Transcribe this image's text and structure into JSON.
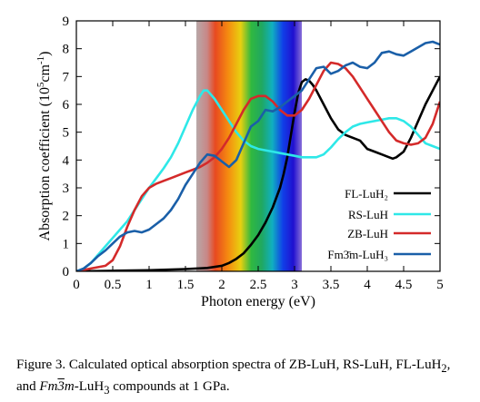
{
  "chart_data": {
    "type": "line",
    "xlabel": "Photon energy (eV)",
    "ylabel": "Absorption coefficient (10^5 cm^-1)",
    "xlim": [
      0,
      5
    ],
    "ylim": [
      0,
      9
    ],
    "xticks": [
      0,
      0.5,
      1,
      1.5,
      2,
      2.5,
      3,
      3.5,
      4,
      4.5,
      5
    ],
    "xtick_labels": [
      "0",
      "0.5",
      "1",
      "1.5",
      "2",
      "2.5",
      "3",
      "3.5",
      "4",
      "4.5",
      "5"
    ],
    "yticks": [
      0,
      1,
      2,
      3,
      4,
      5,
      6,
      7,
      8,
      9
    ],
    "ytick_labels": [
      "0",
      "1",
      "2",
      "3",
      "4",
      "5",
      "6",
      "7",
      "8",
      "9"
    ],
    "visible_band": [
      1.65,
      3.1
    ],
    "grid": false,
    "legend_position": "center-right",
    "series": [
      {
        "name": "FL-LuH₂",
        "color": "#000000",
        "x": [
          0,
          0.5,
          1.0,
          1.5,
          1.8,
          2.0,
          2.1,
          2.2,
          2.3,
          2.4,
          2.5,
          2.6,
          2.7,
          2.8,
          2.85,
          2.9,
          2.95,
          3.0,
          3.05,
          3.1,
          3.15,
          3.2,
          3.25,
          3.3,
          3.4,
          3.5,
          3.6,
          3.7,
          3.8,
          3.9,
          4.0,
          4.1,
          4.2,
          4.3,
          4.35,
          4.4,
          4.5,
          4.6,
          4.7,
          4.8,
          4.9,
          5.0
        ],
        "y": [
          0,
          0.02,
          0.04,
          0.08,
          0.12,
          0.2,
          0.3,
          0.45,
          0.65,
          0.95,
          1.3,
          1.75,
          2.3,
          3.0,
          3.5,
          4.1,
          4.9,
          5.7,
          6.4,
          6.8,
          6.9,
          6.85,
          6.7,
          6.5,
          6.0,
          5.5,
          5.1,
          4.9,
          4.8,
          4.7,
          4.4,
          4.3,
          4.2,
          4.1,
          4.05,
          4.1,
          4.3,
          4.8,
          5.4,
          6.0,
          6.5,
          7.0
        ]
      },
      {
        "name": "RS-LuH",
        "color": "#2ee8e8",
        "x": [
          0,
          0.1,
          0.2,
          0.3,
          0.4,
          0.5,
          0.6,
          0.7,
          0.8,
          0.9,
          1.0,
          1.1,
          1.2,
          1.3,
          1.4,
          1.5,
          1.6,
          1.7,
          1.75,
          1.8,
          1.9,
          2.0,
          2.1,
          2.2,
          2.3,
          2.4,
          2.5,
          2.6,
          2.7,
          2.8,
          2.9,
          3.0,
          3.1,
          3.2,
          3.3,
          3.4,
          3.5,
          3.6,
          3.7,
          3.8,
          3.9,
          4.0,
          4.1,
          4.2,
          4.3,
          4.4,
          4.5,
          4.6,
          4.7,
          4.8,
          4.9,
          5.0
        ],
        "y": [
          0,
          0.1,
          0.3,
          0.6,
          0.9,
          1.2,
          1.5,
          1.8,
          2.2,
          2.6,
          3.0,
          3.35,
          3.7,
          4.1,
          4.6,
          5.2,
          5.8,
          6.3,
          6.5,
          6.5,
          6.2,
          5.8,
          5.4,
          5.0,
          4.7,
          4.5,
          4.4,
          4.35,
          4.3,
          4.25,
          4.2,
          4.15,
          4.1,
          4.1,
          4.1,
          4.2,
          4.45,
          4.75,
          5.0,
          5.2,
          5.3,
          5.35,
          5.4,
          5.45,
          5.5,
          5.5,
          5.4,
          5.2,
          4.9,
          4.6,
          4.5,
          4.4
        ]
      },
      {
        "name": "ZB-LuH",
        "color": "#d42a2a",
        "x": [
          0,
          0.1,
          0.2,
          0.3,
          0.4,
          0.5,
          0.6,
          0.7,
          0.8,
          0.9,
          1.0,
          1.1,
          1.2,
          1.3,
          1.4,
          1.5,
          1.6,
          1.7,
          1.8,
          1.9,
          2.0,
          2.1,
          2.2,
          2.3,
          2.4,
          2.5,
          2.6,
          2.7,
          2.8,
          2.9,
          3.0,
          3.1,
          3.2,
          3.3,
          3.4,
          3.5,
          3.6,
          3.7,
          3.8,
          3.9,
          4.0,
          4.1,
          4.2,
          4.3,
          4.4,
          4.5,
          4.6,
          4.7,
          4.8,
          4.9,
          5.0
        ],
        "y": [
          0,
          0.05,
          0.1,
          0.15,
          0.2,
          0.4,
          0.9,
          1.6,
          2.2,
          2.7,
          3.0,
          3.15,
          3.25,
          3.35,
          3.45,
          3.55,
          3.65,
          3.75,
          3.9,
          4.1,
          4.4,
          4.8,
          5.3,
          5.8,
          6.2,
          6.3,
          6.3,
          6.1,
          5.8,
          5.6,
          5.6,
          5.8,
          6.2,
          6.7,
          7.2,
          7.5,
          7.45,
          7.3,
          7.0,
          6.6,
          6.2,
          5.8,
          5.4,
          5.0,
          4.7,
          4.6,
          4.55,
          4.6,
          4.8,
          5.3,
          6.1
        ]
      },
      {
        "name": "Fm3̄m-LuH₃",
        "color": "#1a5fa8",
        "x": [
          0,
          0.1,
          0.2,
          0.3,
          0.4,
          0.5,
          0.6,
          0.7,
          0.8,
          0.9,
          1.0,
          1.1,
          1.2,
          1.3,
          1.4,
          1.5,
          1.6,
          1.7,
          1.8,
          1.9,
          2.0,
          2.1,
          2.2,
          2.3,
          2.4,
          2.5,
          2.6,
          2.7,
          2.8,
          2.9,
          3.0,
          3.1,
          3.2,
          3.3,
          3.4,
          3.5,
          3.6,
          3.7,
          3.8,
          3.9,
          4.0,
          4.1,
          4.2,
          4.3,
          4.4,
          4.5,
          4.6,
          4.7,
          4.8,
          4.9,
          5.0
        ],
        "y": [
          0,
          0.1,
          0.3,
          0.55,
          0.75,
          1.0,
          1.25,
          1.4,
          1.45,
          1.4,
          1.5,
          1.7,
          1.9,
          2.2,
          2.6,
          3.1,
          3.5,
          3.9,
          4.2,
          4.15,
          3.95,
          3.75,
          4.0,
          4.6,
          5.2,
          5.4,
          5.8,
          5.75,
          5.9,
          6.1,
          6.3,
          6.5,
          6.9,
          7.3,
          7.35,
          7.1,
          7.2,
          7.4,
          7.5,
          7.35,
          7.3,
          7.5,
          7.85,
          7.9,
          7.8,
          7.75,
          7.9,
          8.05,
          8.2,
          8.25,
          8.15
        ]
      }
    ]
  },
  "caption": {
    "prefix": "Figure 3. Calculated optical absorption spectra of ZB-LuH, RS-LuH, FL-LuH",
    "sub1": "2",
    "mid": ", and ",
    "italic1": "Fm",
    "bar3": "3",
    "italic2": "m",
    "mid2": "-LuH",
    "sub2": "3",
    "suffix": " compounds at 1 GPa."
  }
}
